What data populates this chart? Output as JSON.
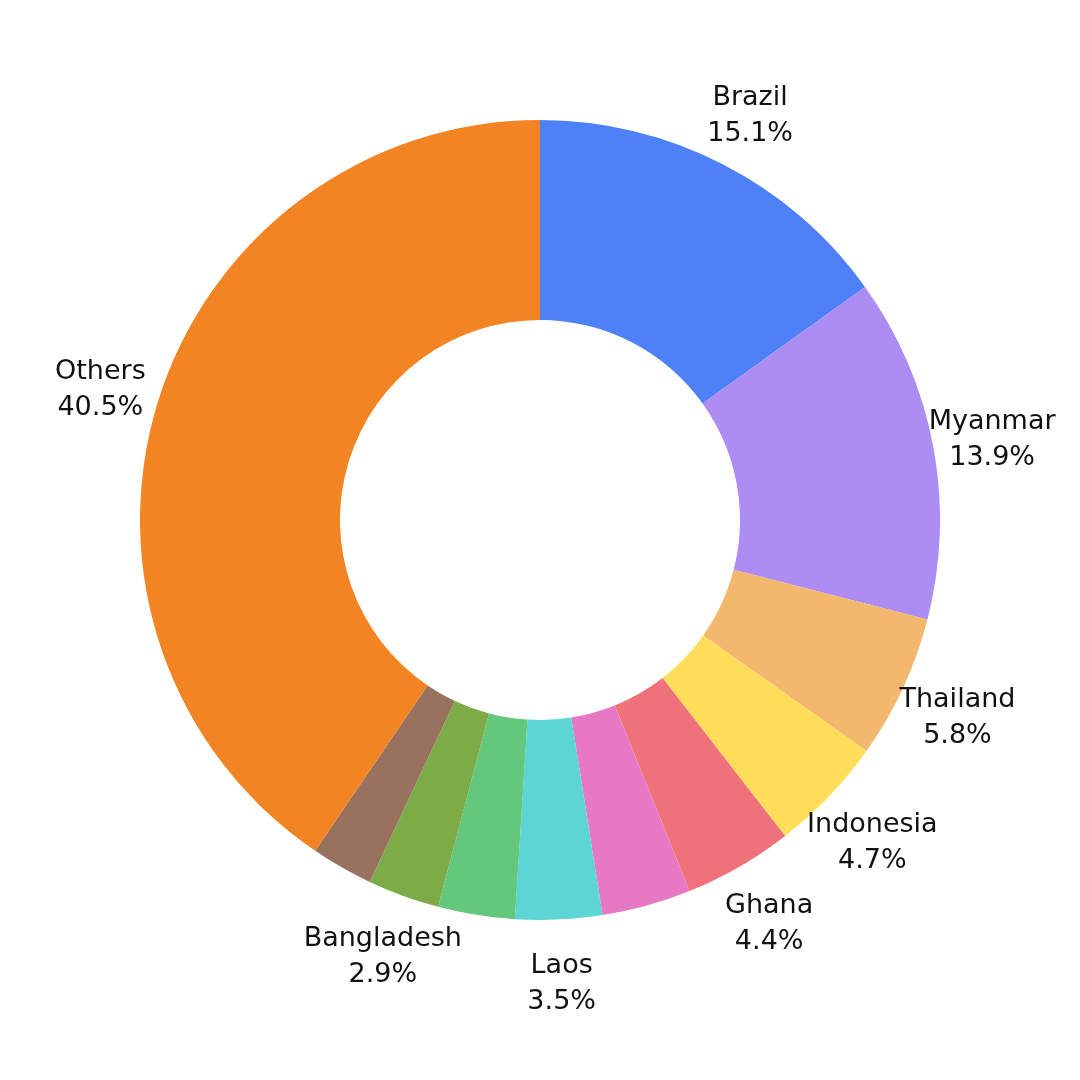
{
  "chart_data": {
    "type": "donut",
    "categories": [
      "Brazil",
      "Myanmar",
      "Thailand",
      "Indonesia",
      "Ghana",
      null,
      "Laos",
      null,
      "Bangladesh",
      null,
      "Others"
    ],
    "values": [
      15.1,
      13.9,
      5.8,
      4.7,
      4.4,
      3.6,
      3.5,
      3.1,
      2.9,
      2.5,
      40.5
    ],
    "colors": [
      "#4e81f7",
      "#ad8cf3",
      "#f3b86e",
      "#fedd5a",
      "#ef727a",
      "#e778c3",
      "#5cd5d4",
      "#63c87e",
      "#7dab47",
      "#98725f",
      "#f38423"
    ],
    "value_labels": [
      "15.1%",
      "13.9%",
      "5.8%",
      "4.7%",
      "4.4%",
      null,
      "3.5%",
      null,
      "2.9%",
      null,
      "40.5%"
    ]
  }
}
